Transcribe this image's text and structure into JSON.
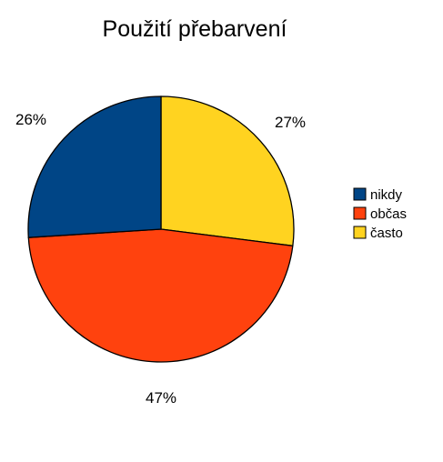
{
  "chart_data": {
    "type": "pie",
    "title": "Použití přebarvení",
    "categories": [
      "nikdy",
      "občas",
      "často"
    ],
    "values": [
      26,
      47,
      27
    ],
    "labels": [
      "26%",
      "47%",
      "27%"
    ],
    "colors": [
      "#004586",
      "#ff420e",
      "#ffd320"
    ],
    "legend": "right"
  }
}
